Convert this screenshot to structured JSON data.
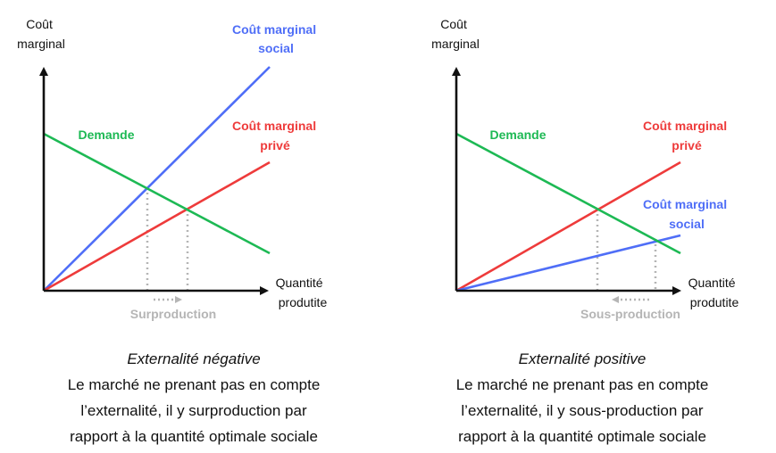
{
  "panels": [
    {
      "id": "left",
      "y_axis_label": [
        "Coût",
        "marginal"
      ],
      "x_axis_label": [
        "Quantité",
        "produtite"
      ],
      "curves": {
        "demand": {
          "label": [
            "Demande"
          ],
          "color": "#1db954"
        },
        "private": {
          "label": [
            "Coût marginal",
            "privé"
          ],
          "color": "#ee3b3b"
        },
        "social": {
          "label": [
            "Coût marginal",
            "social"
          ],
          "color": "#4f6ef7"
        }
      },
      "note": "Surproduction",
      "note_arrow": "right",
      "caption_title": "Externalité négative",
      "caption_lines": [
        "Le marché ne prenant pas en compte",
        "l’externalité, il y surproduction par",
        "rapport à la quantité optimale sociale"
      ]
    },
    {
      "id": "right",
      "y_axis_label": [
        "Coût",
        "marginal"
      ],
      "x_axis_label": [
        "Quantité",
        "produtite"
      ],
      "curves": {
        "demand": {
          "label": [
            "Demande"
          ],
          "color": "#1db954"
        },
        "private": {
          "label": [
            "Coût marginal",
            "privé"
          ],
          "color": "#ee3b3b"
        },
        "social": {
          "label": [
            "Coût marginal",
            "social"
          ],
          "color": "#4f6ef7"
        }
      },
      "note": "Sous-production",
      "note_arrow": "left",
      "caption_title": "Externalité positive",
      "caption_lines": [
        "Le marché ne prenant pas en compte",
        "l’externalité, il y sous-production par",
        "rapport à la quantité optimale sociale"
      ]
    }
  ],
  "colors": {
    "axis": "#111111",
    "guide": "#b5b5b5"
  }
}
